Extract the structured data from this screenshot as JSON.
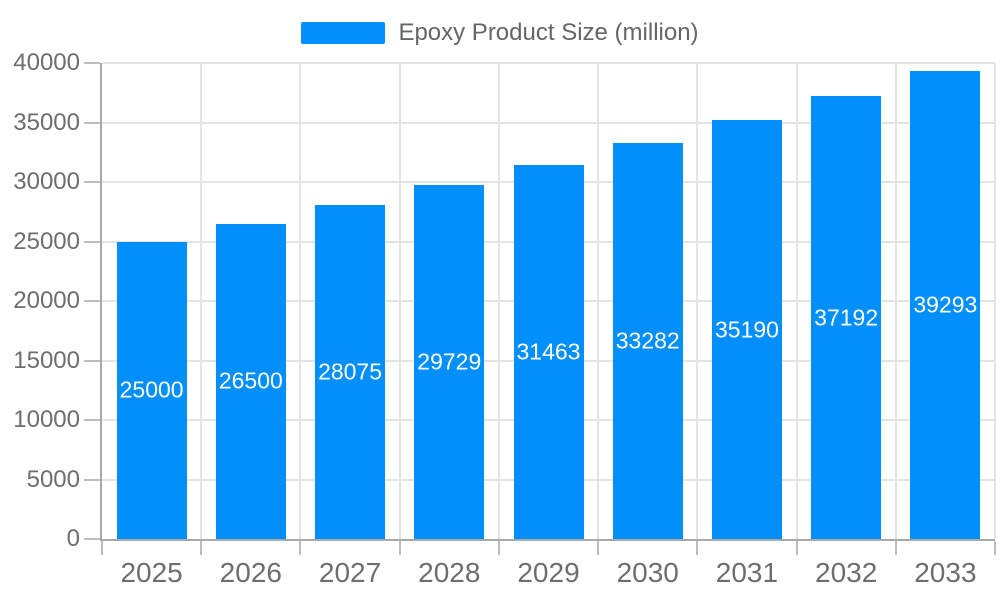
{
  "legend": {
    "label": "Epoxy Product Size (million)",
    "swatch_color": "#008FFB"
  },
  "chart_data": {
    "type": "bar",
    "title": "",
    "legend_position": "top",
    "grid": true,
    "categories": [
      "2025",
      "2026",
      "2027",
      "2028",
      "2029",
      "2030",
      "2031",
      "2032",
      "2033"
    ],
    "series": [
      {
        "name": "Epoxy Product Size (million)",
        "values": [
          25000,
          26500,
          28075,
          29729,
          31463,
          33282,
          35190,
          37192,
          39293
        ]
      }
    ],
    "data_labels": [
      "25000",
      "26500",
      "28075",
      "29729",
      "31463",
      "33282",
      "35190",
      "37192",
      "39293"
    ],
    "ylim": [
      0,
      40000
    ],
    "y_tick_values": [
      0,
      5000,
      10000,
      15000,
      20000,
      25000,
      30000,
      35000,
      40000
    ],
    "y_tick_labels": [
      "0",
      "5000",
      "10000",
      "15000",
      "20000",
      "25000",
      "30000",
      "35000",
      "40000"
    ],
    "colors": {
      "bar": "#008FFB",
      "data_label": "#FFFFFF",
      "axis_label": "#6E6E6E",
      "legend_label": "#666666",
      "gridline": "#E4E4E4",
      "axis_line": "#A9A9A9",
      "tick": "#BDBDBD"
    }
  }
}
